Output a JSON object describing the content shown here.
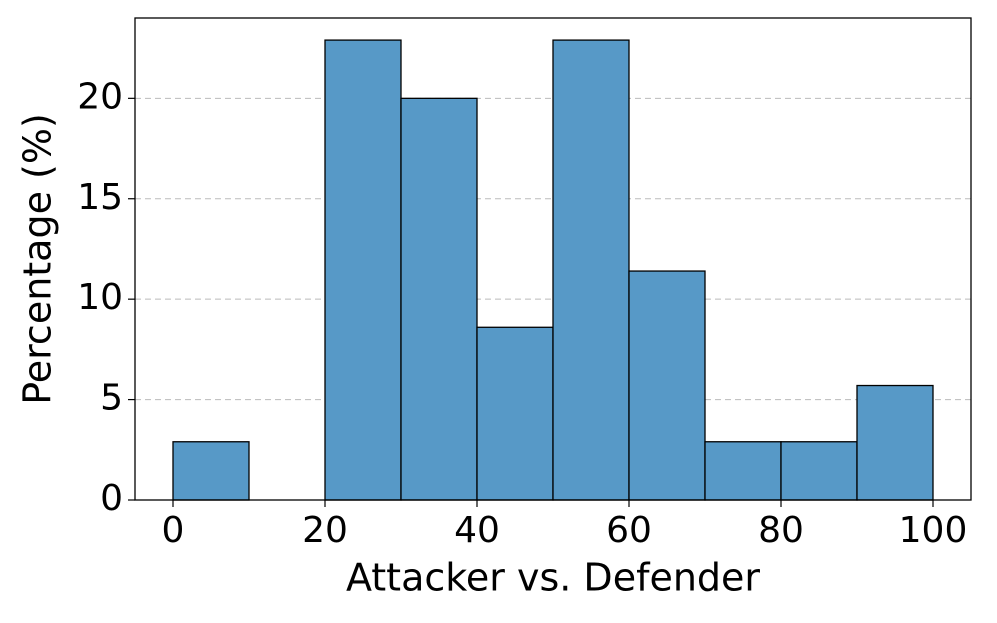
{
  "chart_data": {
    "type": "histogram",
    "xlabel": "Attacker vs. Defender",
    "ylabel": "Percentage (%)",
    "bins": [
      0,
      10,
      20,
      30,
      40,
      50,
      60,
      70,
      80,
      90,
      100
    ],
    "counts": [
      2.9,
      0,
      22.9,
      20,
      8.6,
      22.9,
      11.4,
      2.9,
      2.9,
      5.7
    ],
    "color": "#5799c7",
    "xlim": [
      -5,
      105
    ],
    "xticks": [
      0,
      20,
      40,
      60,
      80,
      100
    ],
    "ylim": [
      0,
      24
    ],
    "yticks": [
      0,
      5,
      10,
      15,
      20
    ],
    "grid": true
  }
}
